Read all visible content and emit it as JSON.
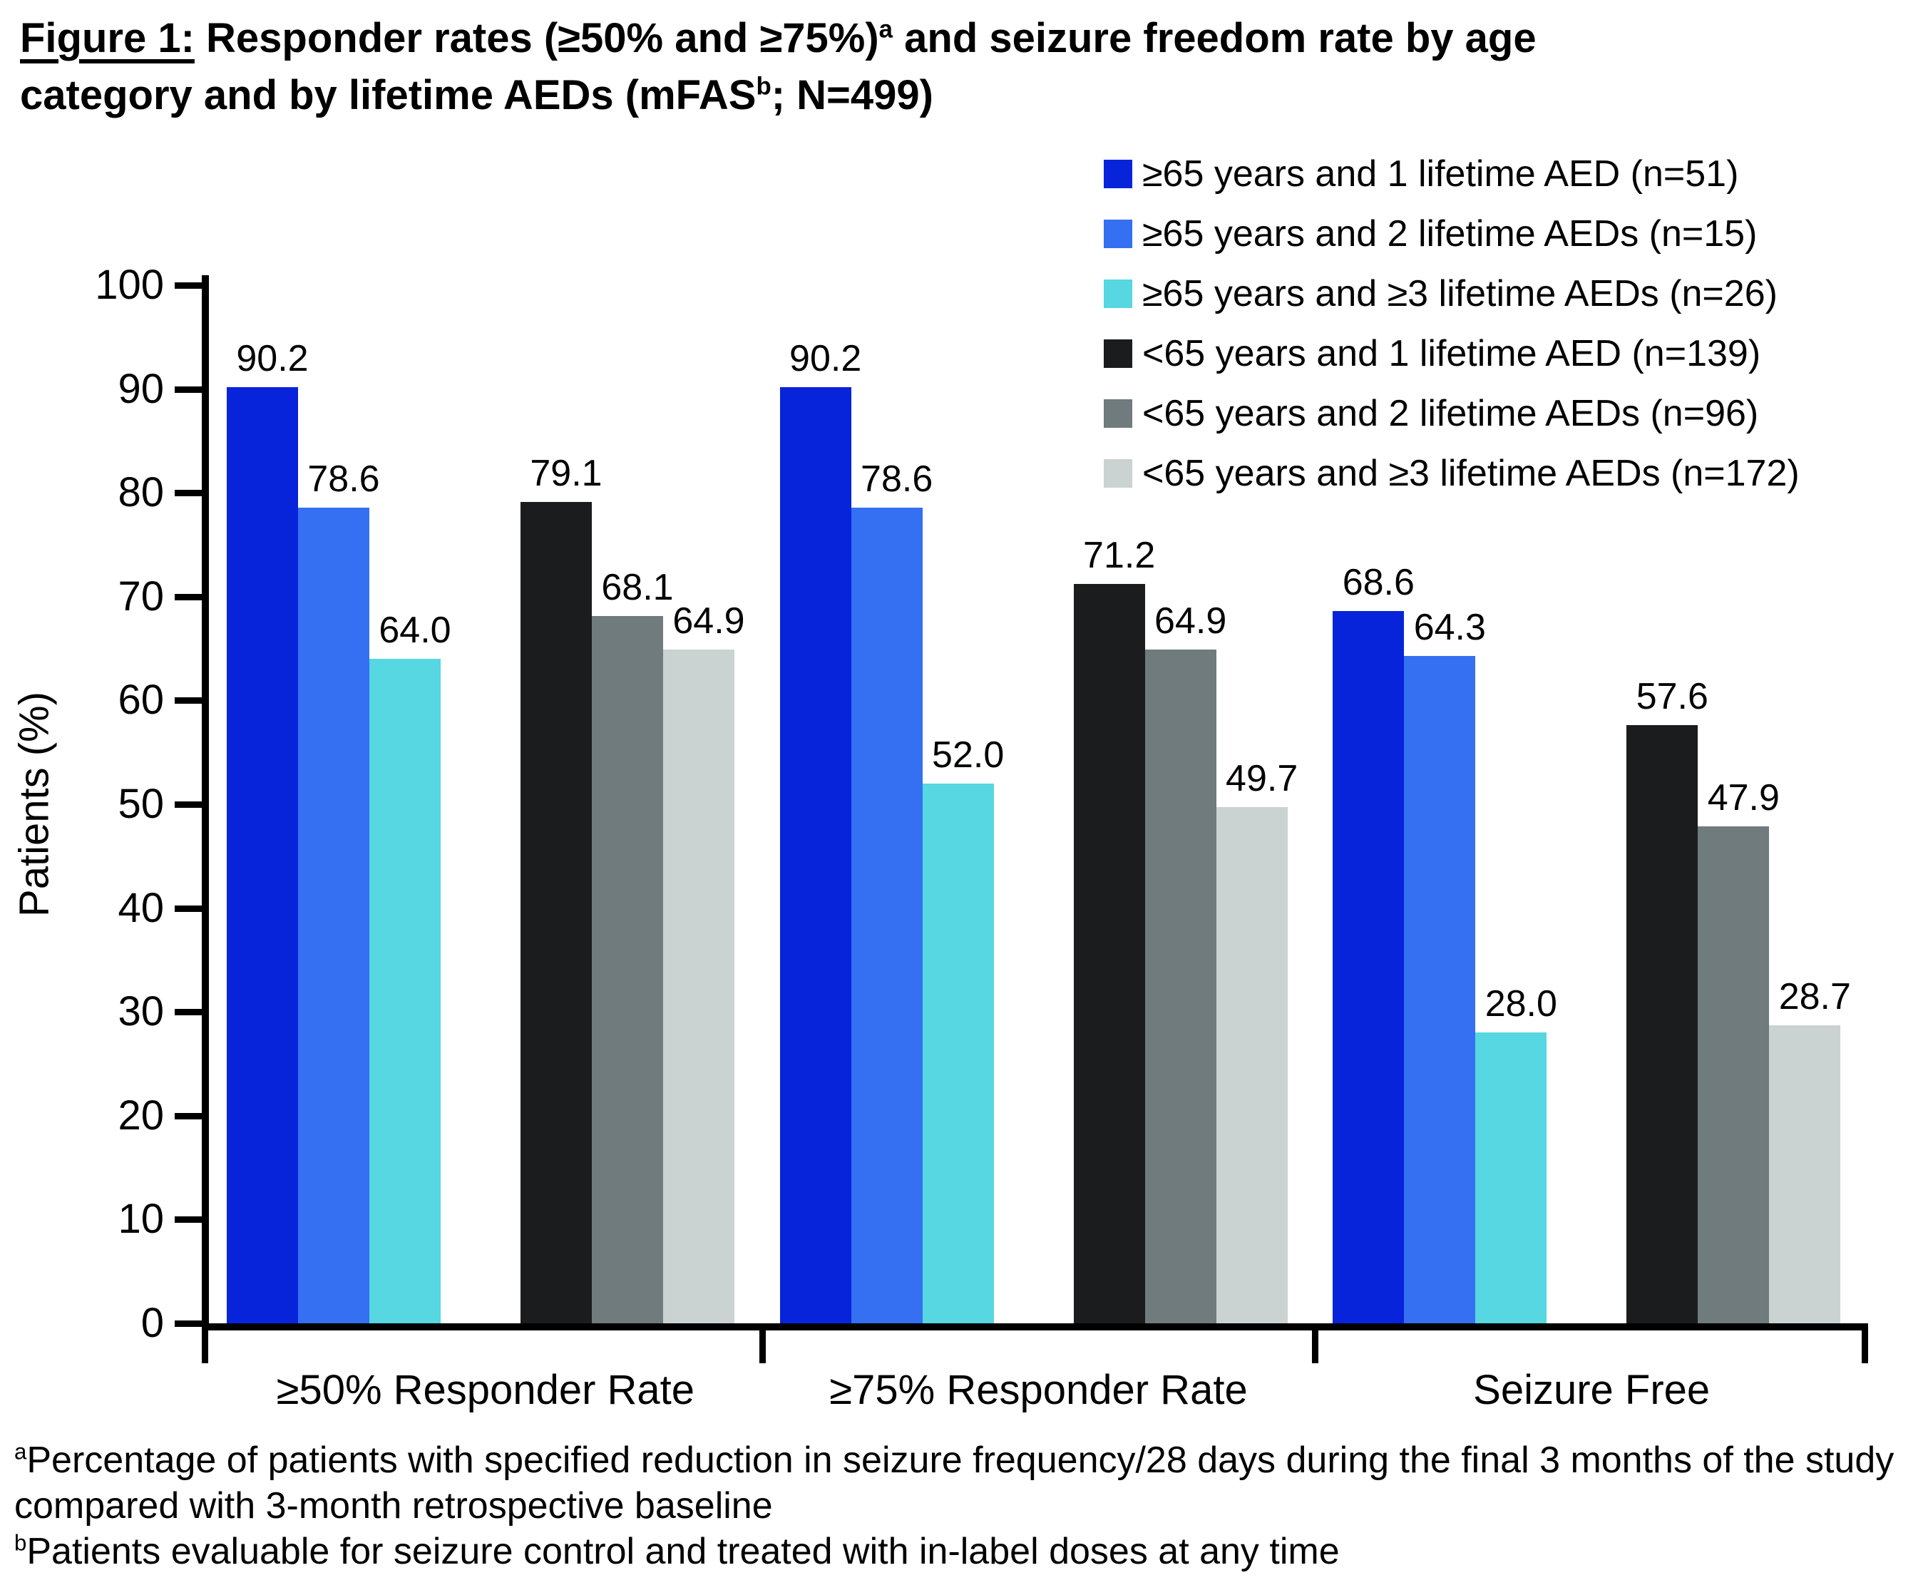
{
  "title": {
    "lines": [
      [
        {
          "text": "Figure 1:",
          "underline": true
        },
        {
          "text": " Responder rates (≥50% and ≥75%)"
        },
        {
          "text": "a",
          "sup": true
        },
        {
          "text": " and seizure freedom rate by age"
        }
      ],
      [
        {
          "text": "category and by lifetime AEDs (mFAS"
        },
        {
          "text": "b",
          "sup": true
        },
        {
          "text": "; N=499)"
        }
      ]
    ]
  },
  "chart_data": {
    "type": "bar",
    "categories": [
      "≥50% Responder Rate",
      "≥75% Responder Rate",
      "Seizure Free"
    ],
    "series": [
      {
        "name": "≥65 years and 1 lifetime AED (n=51)",
        "color": "#0724DB",
        "values": [
          90.2,
          90.2,
          68.6
        ]
      },
      {
        "name": "≥65 years and 2 lifetime AEDs (n=15)",
        "color": "#3470F1",
        "values": [
          78.6,
          78.6,
          64.3
        ]
      },
      {
        "name": "≥65 years and ≥3 lifetime AEDs (n=26)",
        "color": "#56D7E1",
        "values": [
          64.0,
          52.0,
          28.0
        ]
      },
      {
        "name": "<65 years and 1 lifetime AED (n=139)",
        "color": "#1A1C1E",
        "values": [
          79.1,
          71.2,
          57.6
        ]
      },
      {
        "name": "<65 years and 2 lifetime AEDs (n=96)",
        "color": "#6F7B7C",
        "values": [
          68.1,
          64.9,
          47.9
        ]
      },
      {
        "name": "<65 years and ≥3 lifetime AEDs (n=172)",
        "color": "#CBD2D2",
        "values": [
          64.9,
          49.7,
          28.7
        ]
      }
    ],
    "ylabel": "Patients (%)",
    "ylim": [
      0,
      100
    ],
    "yticks": [
      0,
      10,
      20,
      30,
      40,
      50,
      60,
      70,
      80,
      90,
      100
    ],
    "grid": false,
    "legend_position": "top-right",
    "value_labels": true,
    "value_label_decimals": 1,
    "axis_color": "#000000",
    "background_color": "#ffffff"
  },
  "footnotes": [
    {
      "sup": "a",
      "text": "Percentage of patients with specified reduction in seizure frequency/28 days during the final 3 months of the study compared with 3-month retrospective baseline"
    },
    {
      "sup": "b",
      "text": "Patients evaluable for seizure control and treated with in-label doses at any time"
    }
  ]
}
